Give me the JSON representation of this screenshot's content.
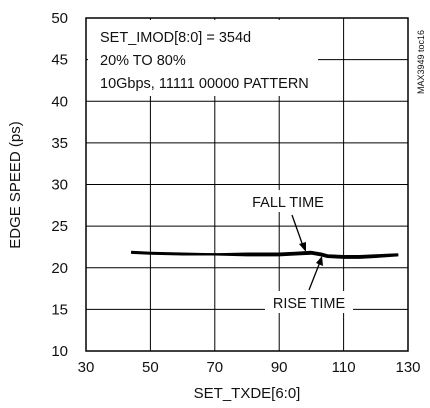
{
  "chart_data": {
    "type": "line",
    "title": "",
    "xlabel": "SET_TXDE[6:0]",
    "ylabel": "EDGE SPEED (ps)",
    "xlim": [
      30,
      130
    ],
    "ylim": [
      10,
      50
    ],
    "xticks": [
      30,
      50,
      70,
      90,
      110,
      130
    ],
    "yticks": [
      10,
      15,
      20,
      25,
      30,
      35,
      40,
      45,
      50
    ],
    "grid": true,
    "conditions": [
      "SET_IMOD[8:0] = 354d",
      "20% TO 80%",
      "10Gbps, 11111 00000 PATTERN"
    ],
    "figure_id": "MAX3949 toc16",
    "series": [
      {
        "name": "FALL TIME",
        "x": [
          44,
          50,
          60,
          70,
          80,
          90,
          95,
          100,
          103,
          105,
          110,
          115,
          120,
          127
        ],
        "values": [
          21.9,
          21.8,
          21.7,
          21.6,
          21.7,
          21.7,
          21.8,
          21.9,
          21.7,
          21.5,
          21.4,
          21.4,
          21.5,
          21.6
        ]
      },
      {
        "name": "RISE TIME",
        "x": [
          44,
          50,
          60,
          70,
          80,
          90,
          95,
          100,
          103,
          105,
          110,
          115,
          120,
          127
        ],
        "values": [
          21.8,
          21.7,
          21.6,
          21.6,
          21.5,
          21.5,
          21.6,
          21.7,
          21.5,
          21.3,
          21.2,
          21.2,
          21.3,
          21.5
        ]
      }
    ],
    "annotations": [
      {
        "text": "FALL TIME",
        "series": "FALL TIME"
      },
      {
        "text": "RISE TIME",
        "series": "RISE TIME"
      }
    ]
  }
}
